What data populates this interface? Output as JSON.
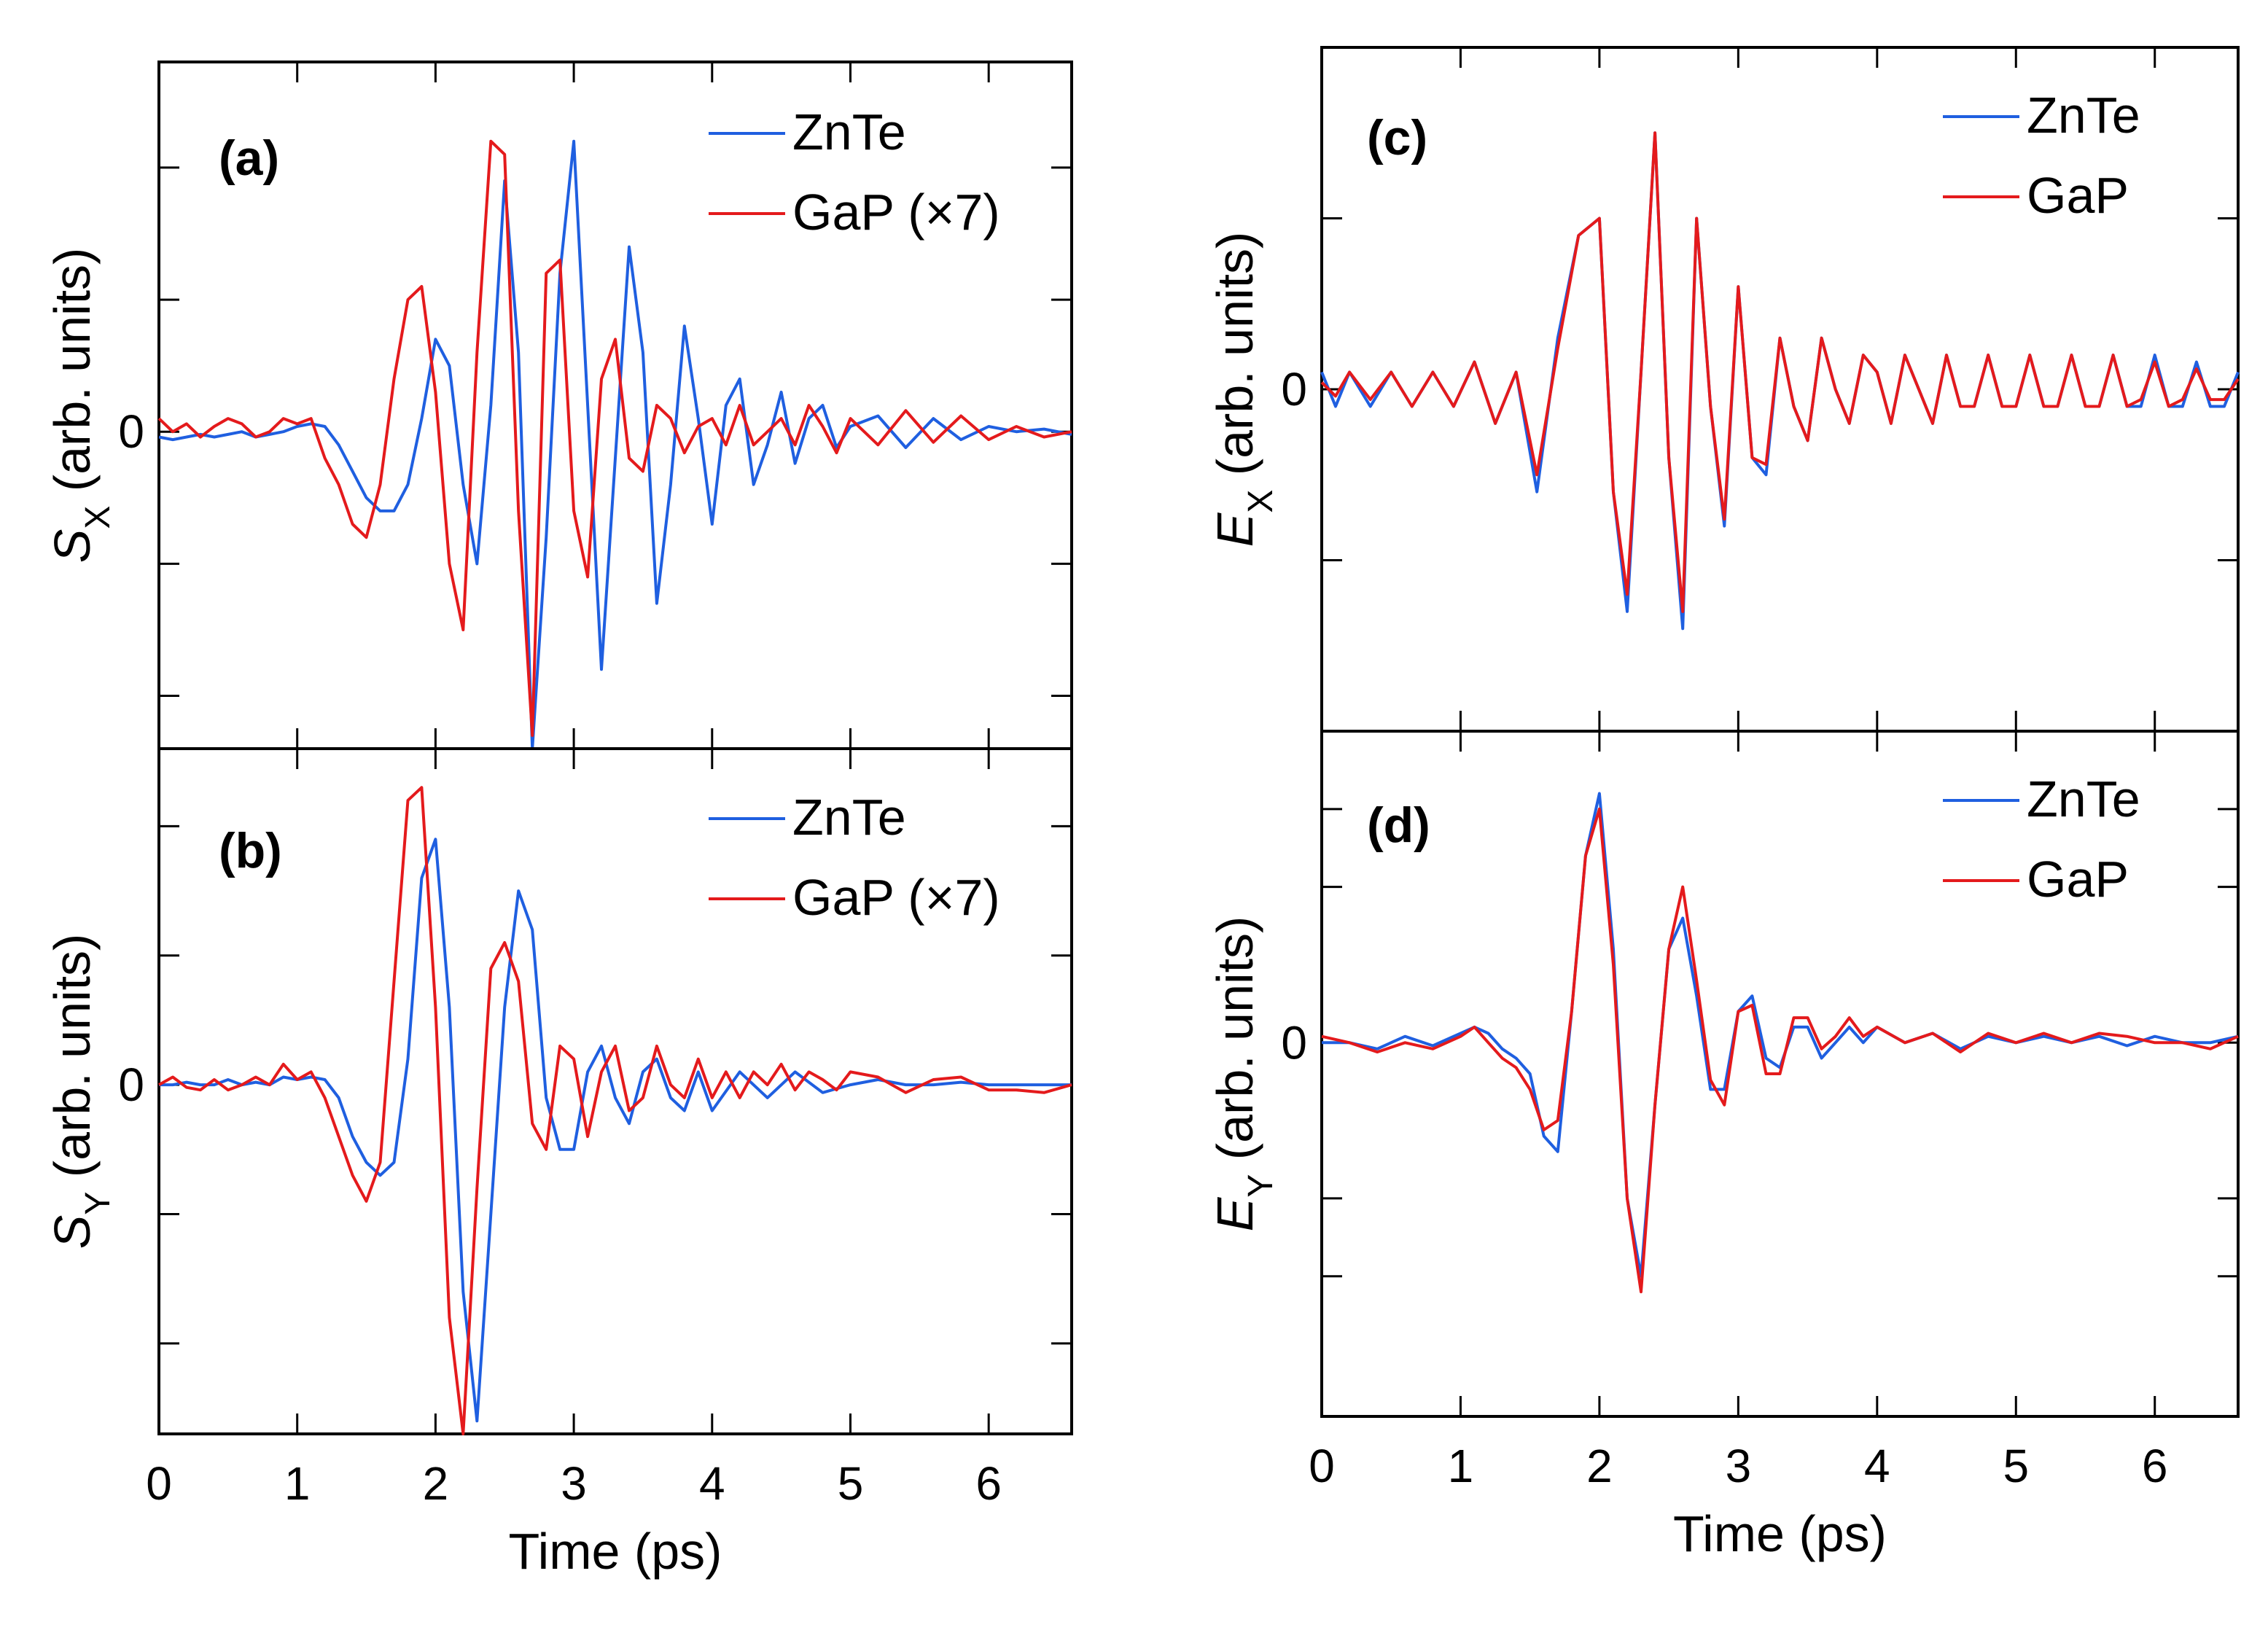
{
  "chart_data": [
    {
      "type": "line",
      "panel_label": "(a)",
      "ylabel_main": "S",
      "ylabel_sub": "X",
      "ylabel_rest": " (arb. units)",
      "xlabel": "Time (ps)",
      "xlim": [
        0,
        6.6
      ],
      "ylim": [
        -1.2,
        1.4
      ],
      "xticks": [
        0,
        1,
        2,
        3,
        4,
        5,
        6
      ],
      "xticklabels": [
        "0",
        "1",
        "2",
        "3",
        "4",
        "5",
        "6"
      ],
      "show_xticklabels": false,
      "yticks": [
        -1.0,
        -0.5,
        0,
        0.5,
        1.0
      ],
      "yticklabels": [
        "",
        "",
        "0",
        "",
        ""
      ],
      "legend_position": "top-right",
      "series": [
        {
          "name": "ZnTe",
          "color": "#1f5fe0",
          "x": [
            0,
            0.1,
            0.2,
            0.3,
            0.4,
            0.5,
            0.6,
            0.7,
            0.8,
            0.9,
            1.0,
            1.1,
            1.2,
            1.3,
            1.4,
            1.5,
            1.6,
            1.7,
            1.8,
            1.9,
            2.0,
            2.1,
            2.2,
            2.3,
            2.4,
            2.5,
            2.6,
            2.7,
            2.8,
            2.9,
            3.0,
            3.1,
            3.2,
            3.3,
            3.4,
            3.5,
            3.6,
            3.7,
            3.8,
            3.9,
            4.0,
            4.1,
            4.2,
            4.3,
            4.4,
            4.5,
            4.6,
            4.7,
            4.8,
            4.9,
            5.0,
            5.2,
            5.4,
            5.6,
            5.8,
            6.0,
            6.2,
            6.4,
            6.6
          ],
          "y": [
            -0.02,
            -0.03,
            -0.02,
            -0.01,
            -0.02,
            -0.01,
            0.0,
            -0.02,
            -0.01,
            0.0,
            0.02,
            0.03,
            0.02,
            -0.05,
            -0.15,
            -0.25,
            -0.3,
            -0.3,
            -0.2,
            0.05,
            0.35,
            0.25,
            -0.2,
            -0.5,
            0.1,
            0.95,
            0.3,
            -1.2,
            -0.4,
            0.6,
            1.1,
            0.1,
            -0.9,
            -0.1,
            0.7,
            0.3,
            -0.65,
            -0.2,
            0.4,
            0.05,
            -0.35,
            0.1,
            0.2,
            -0.2,
            -0.05,
            0.15,
            -0.12,
            0.05,
            0.1,
            -0.06,
            0.02,
            0.06,
            -0.06,
            0.05,
            -0.03,
            0.02,
            0.0,
            0.01,
            -0.01
          ]
        },
        {
          "name": "GaP (×7)",
          "color": "#e41a1c",
          "x": [
            0,
            0.1,
            0.2,
            0.3,
            0.4,
            0.5,
            0.6,
            0.7,
            0.8,
            0.9,
            1.0,
            1.1,
            1.2,
            1.3,
            1.4,
            1.5,
            1.6,
            1.7,
            1.8,
            1.9,
            2.0,
            2.1,
            2.2,
            2.3,
            2.4,
            2.5,
            2.6,
            2.7,
            2.8,
            2.9,
            3.0,
            3.1,
            3.2,
            3.3,
            3.4,
            3.5,
            3.6,
            3.7,
            3.8,
            3.9,
            4.0,
            4.1,
            4.2,
            4.3,
            4.4,
            4.5,
            4.6,
            4.7,
            4.8,
            4.9,
            5.0,
            5.2,
            5.4,
            5.6,
            5.8,
            6.0,
            6.2,
            6.4,
            6.6
          ],
          "y": [
            0.05,
            0.0,
            0.03,
            -0.02,
            0.02,
            0.05,
            0.03,
            -0.02,
            0.0,
            0.05,
            0.03,
            0.05,
            -0.1,
            -0.2,
            -0.35,
            -0.4,
            -0.2,
            0.2,
            0.5,
            0.55,
            0.15,
            -0.5,
            -0.75,
            0.3,
            1.1,
            1.05,
            -0.3,
            -1.15,
            0.6,
            0.65,
            -0.3,
            -0.55,
            0.2,
            0.35,
            -0.1,
            -0.15,
            0.1,
            0.05,
            -0.08,
            0.02,
            0.05,
            -0.05,
            0.1,
            -0.05,
            0.0,
            0.05,
            -0.05,
            0.1,
            0.02,
            -0.08,
            0.05,
            -0.05,
            0.08,
            -0.04,
            0.06,
            -0.03,
            0.02,
            -0.02,
            0.0
          ]
        }
      ]
    },
    {
      "type": "line",
      "panel_label": "(b)",
      "ylabel_main": "S",
      "ylabel_sub": "Y",
      "ylabel_rest": " (arb. units)",
      "xlabel": "Time (ps)",
      "xlim": [
        0,
        6.6
      ],
      "ylim": [
        -1.35,
        1.3
      ],
      "xticks": [
        0,
        1,
        2,
        3,
        4,
        5,
        6
      ],
      "xticklabels": [
        "0",
        "1",
        "2",
        "3",
        "4",
        "5",
        "6"
      ],
      "show_xticklabels": true,
      "yticks": [
        -1.0,
        -0.5,
        0,
        0.5,
        1.0
      ],
      "yticklabels": [
        "",
        "",
        "0",
        "",
        ""
      ],
      "legend_position": "top-right",
      "series": [
        {
          "name": "ZnTe",
          "color": "#1f5fe0",
          "x": [
            0,
            0.1,
            0.2,
            0.3,
            0.4,
            0.5,
            0.6,
            0.7,
            0.8,
            0.9,
            1.0,
            1.1,
            1.2,
            1.3,
            1.4,
            1.5,
            1.6,
            1.7,
            1.8,
            1.9,
            2.0,
            2.1,
            2.2,
            2.3,
            2.4,
            2.5,
            2.6,
            2.7,
            2.8,
            2.9,
            3.0,
            3.1,
            3.2,
            3.3,
            3.4,
            3.5,
            3.6,
            3.7,
            3.8,
            3.9,
            4.0,
            4.2,
            4.4,
            4.6,
            4.8,
            5.0,
            5.2,
            5.4,
            5.6,
            5.8,
            6.0,
            6.2,
            6.4,
            6.6
          ],
          "y": [
            0.0,
            0.0,
            0.01,
            0.0,
            0.0,
            0.02,
            0.0,
            0.01,
            0.0,
            0.03,
            0.02,
            0.03,
            0.02,
            -0.05,
            -0.2,
            -0.3,
            -0.35,
            -0.3,
            0.1,
            0.8,
            0.95,
            0.3,
            -0.8,
            -1.3,
            -0.5,
            0.3,
            0.75,
            0.6,
            -0.05,
            -0.25,
            -0.25,
            0.05,
            0.15,
            -0.05,
            -0.15,
            0.05,
            0.1,
            -0.05,
            -0.1,
            0.05,
            -0.1,
            0.05,
            -0.05,
            0.05,
            -0.03,
            0.0,
            0.02,
            0.0,
            0.0,
            0.01,
            0.0,
            0.0,
            0.0,
            0.0
          ]
        },
        {
          "name": "GaP (×7)",
          "color": "#e41a1c",
          "x": [
            0,
            0.1,
            0.2,
            0.3,
            0.4,
            0.5,
            0.6,
            0.7,
            0.8,
            0.9,
            1.0,
            1.1,
            1.2,
            1.3,
            1.4,
            1.5,
            1.6,
            1.7,
            1.8,
            1.9,
            2.0,
            2.1,
            2.2,
            2.3,
            2.4,
            2.5,
            2.6,
            2.7,
            2.8,
            2.9,
            3.0,
            3.1,
            3.2,
            3.3,
            3.4,
            3.5,
            3.6,
            3.7,
            3.8,
            3.9,
            4.0,
            4.1,
            4.2,
            4.3,
            4.4,
            4.5,
            4.6,
            4.7,
            4.8,
            4.9,
            5.0,
            5.2,
            5.4,
            5.6,
            5.8,
            6.0,
            6.2,
            6.4,
            6.6
          ],
          "y": [
            0.0,
            0.03,
            -0.01,
            -0.02,
            0.02,
            -0.02,
            0.0,
            0.03,
            0.0,
            0.08,
            0.02,
            0.05,
            -0.05,
            -0.2,
            -0.35,
            -0.45,
            -0.3,
            0.4,
            1.1,
            1.15,
            0.3,
            -0.9,
            -1.35,
            -0.4,
            0.45,
            0.55,
            0.4,
            -0.15,
            -0.25,
            0.15,
            0.1,
            -0.2,
            0.05,
            0.15,
            -0.1,
            -0.05,
            0.15,
            0.0,
            -0.05,
            0.1,
            -0.05,
            0.05,
            -0.05,
            0.05,
            0.0,
            0.08,
            -0.02,
            0.05,
            0.02,
            -0.02,
            0.05,
            0.03,
            -0.03,
            0.02,
            0.03,
            -0.02,
            -0.02,
            -0.03,
            0.0
          ]
        }
      ]
    },
    {
      "type": "line",
      "panel_label": "(c)",
      "ylabel_main": "E",
      "ylabel_sub": "X",
      "ylabel_rest": " (arb. units)",
      "xlabel": "Time (ps)",
      "xlim": [
        0,
        6.6
      ],
      "ylim": [
        -1.0,
        1.0
      ],
      "xticks": [
        0,
        1,
        2,
        3,
        4,
        5,
        6
      ],
      "xticklabels": [
        "0",
        "1",
        "2",
        "3",
        "4",
        "5",
        "6"
      ],
      "show_xticklabels": false,
      "yticks": [
        -0.5,
        0,
        0.5
      ],
      "yticklabels": [
        "",
        "0",
        ""
      ],
      "legend_position": "top-right",
      "series": [
        {
          "name": "ZnTe",
          "color": "#1f5fe0",
          "x": [
            0,
            0.1,
            0.2,
            0.35,
            0.5,
            0.65,
            0.8,
            0.95,
            1.1,
            1.25,
            1.4,
            1.55,
            1.7,
            1.85,
            2.0,
            2.1,
            2.2,
            2.3,
            2.4,
            2.5,
            2.6,
            2.7,
            2.8,
            2.9,
            3.0,
            3.1,
            3.2,
            3.3,
            3.4,
            3.5,
            3.6,
            3.7,
            3.8,
            3.9,
            4.0,
            4.1,
            4.2,
            4.3,
            4.4,
            4.5,
            4.6,
            4.7,
            4.8,
            4.9,
            5.0,
            5.1,
            5.2,
            5.3,
            5.4,
            5.5,
            5.6,
            5.7,
            5.8,
            5.9,
            6.0,
            6.1,
            6.2,
            6.3,
            6.4,
            6.5,
            6.6
          ],
          "y": [
            0.05,
            -0.05,
            0.05,
            -0.05,
            0.05,
            -0.05,
            0.05,
            -0.05,
            0.08,
            -0.1,
            0.05,
            -0.3,
            0.15,
            0.45,
            0.5,
            -0.3,
            -0.65,
            0.05,
            0.75,
            -0.2,
            -0.7,
            0.5,
            -0.05,
            -0.4,
            0.3,
            -0.2,
            -0.25,
            0.15,
            -0.05,
            -0.15,
            0.15,
            0.0,
            -0.1,
            0.1,
            0.05,
            -0.1,
            0.1,
            0.0,
            -0.1,
            0.1,
            -0.05,
            -0.05,
            0.1,
            -0.05,
            -0.05,
            0.1,
            -0.05,
            -0.05,
            0.1,
            -0.05,
            -0.05,
            0.1,
            -0.05,
            -0.05,
            0.1,
            -0.05,
            -0.05,
            0.08,
            -0.05,
            -0.05,
            0.05
          ]
        },
        {
          "name": "GaP",
          "color": "#e41a1c",
          "x": [
            0,
            0.1,
            0.2,
            0.35,
            0.5,
            0.65,
            0.8,
            0.95,
            1.1,
            1.25,
            1.4,
            1.55,
            1.7,
            1.85,
            2.0,
            2.1,
            2.2,
            2.3,
            2.4,
            2.5,
            2.6,
            2.7,
            2.8,
            2.9,
            3.0,
            3.1,
            3.2,
            3.3,
            3.4,
            3.5,
            3.6,
            3.7,
            3.8,
            3.9,
            4.0,
            4.1,
            4.2,
            4.3,
            4.4,
            4.5,
            4.6,
            4.7,
            4.8,
            4.9,
            5.0,
            5.1,
            5.2,
            5.3,
            5.4,
            5.5,
            5.6,
            5.7,
            5.8,
            5.9,
            6.0,
            6.1,
            6.2,
            6.3,
            6.4,
            6.5,
            6.6
          ],
          "y": [
            0.02,
            -0.02,
            0.05,
            -0.03,
            0.05,
            -0.05,
            0.05,
            -0.05,
            0.08,
            -0.1,
            0.05,
            -0.25,
            0.12,
            0.45,
            0.5,
            -0.3,
            -0.6,
            0.05,
            0.75,
            -0.2,
            -0.65,
            0.5,
            -0.05,
            -0.38,
            0.3,
            -0.2,
            -0.22,
            0.15,
            -0.05,
            -0.15,
            0.15,
            0.0,
            -0.1,
            0.1,
            0.05,
            -0.1,
            0.1,
            0.0,
            -0.1,
            0.1,
            -0.05,
            -0.05,
            0.1,
            -0.05,
            -0.05,
            0.1,
            -0.05,
            -0.05,
            0.1,
            -0.05,
            -0.05,
            0.1,
            -0.05,
            -0.03,
            0.08,
            -0.05,
            -0.03,
            0.06,
            -0.03,
            -0.03,
            0.03
          ]
        }
      ]
    },
    {
      "type": "line",
      "panel_label": "(d)",
      "ylabel_main": "E",
      "ylabel_sub": "Y",
      "ylabel_rest": " (arb. units)",
      "xlabel": "Time (ps)",
      "xlim": [
        0,
        6.6
      ],
      "ylim": [
        -1.2,
        1.0
      ],
      "xticks": [
        0,
        1,
        2,
        3,
        4,
        5,
        6
      ],
      "xticklabels": [
        "0",
        "1",
        "2",
        "3",
        "4",
        "5",
        "6"
      ],
      "show_xticklabels": true,
      "yticks": [
        -0.75,
        -0.5,
        0,
        0.5,
        0.75
      ],
      "yticklabels": [
        "",
        "",
        "0",
        "",
        ""
      ],
      "legend_position": "top-right",
      "series": [
        {
          "name": "ZnTe",
          "color": "#1f5fe0",
          "x": [
            0,
            0.2,
            0.4,
            0.6,
            0.8,
            1.0,
            1.1,
            1.2,
            1.3,
            1.4,
            1.5,
            1.6,
            1.7,
            1.8,
            1.9,
            2.0,
            2.1,
            2.2,
            2.3,
            2.4,
            2.5,
            2.6,
            2.7,
            2.8,
            2.9,
            3.0,
            3.1,
            3.2,
            3.3,
            3.4,
            3.5,
            3.6,
            3.7,
            3.8,
            3.9,
            4.0,
            4.2,
            4.4,
            4.6,
            4.8,
            5.0,
            5.2,
            5.4,
            5.6,
            5.8,
            6.0,
            6.2,
            6.4,
            6.6
          ],
          "y": [
            0.0,
            0.0,
            -0.02,
            0.02,
            -0.01,
            0.03,
            0.05,
            0.03,
            -0.02,
            -0.05,
            -0.1,
            -0.3,
            -0.35,
            0.1,
            0.6,
            0.8,
            0.3,
            -0.5,
            -0.75,
            -0.2,
            0.3,
            0.4,
            0.15,
            -0.15,
            -0.15,
            0.1,
            0.15,
            -0.05,
            -0.08,
            0.05,
            0.05,
            -0.05,
            0.0,
            0.05,
            0.0,
            0.05,
            0.0,
            0.03,
            -0.02,
            0.02,
            0.0,
            0.02,
            0.0,
            0.02,
            -0.01,
            0.02,
            0.0,
            0.0,
            0.02
          ]
        },
        {
          "name": "GaP",
          "color": "#e41a1c",
          "x": [
            0,
            0.2,
            0.4,
            0.6,
            0.8,
            1.0,
            1.1,
            1.2,
            1.3,
            1.4,
            1.5,
            1.6,
            1.7,
            1.8,
            1.9,
            2.0,
            2.1,
            2.2,
            2.3,
            2.4,
            2.5,
            2.6,
            2.7,
            2.8,
            2.9,
            3.0,
            3.1,
            3.2,
            3.3,
            3.4,
            3.5,
            3.6,
            3.7,
            3.8,
            3.9,
            4.0,
            4.2,
            4.4,
            4.6,
            4.8,
            5.0,
            5.2,
            5.4,
            5.6,
            5.8,
            6.0,
            6.2,
            6.4,
            6.6
          ],
          "y": [
            0.02,
            0.0,
            -0.03,
            0.0,
            -0.02,
            0.02,
            0.05,
            0.0,
            -0.05,
            -0.08,
            -0.15,
            -0.28,
            -0.25,
            0.1,
            0.6,
            0.75,
            0.25,
            -0.5,
            -0.8,
            -0.2,
            0.3,
            0.5,
            0.2,
            -0.12,
            -0.2,
            0.1,
            0.12,
            -0.1,
            -0.1,
            0.08,
            0.08,
            -0.02,
            0.02,
            0.08,
            0.02,
            0.05,
            0.0,
            0.03,
            -0.03,
            0.03,
            0.0,
            0.03,
            0.0,
            0.03,
            0.02,
            0.0,
            0.0,
            -0.02,
            0.02
          ]
        }
      ]
    }
  ]
}
